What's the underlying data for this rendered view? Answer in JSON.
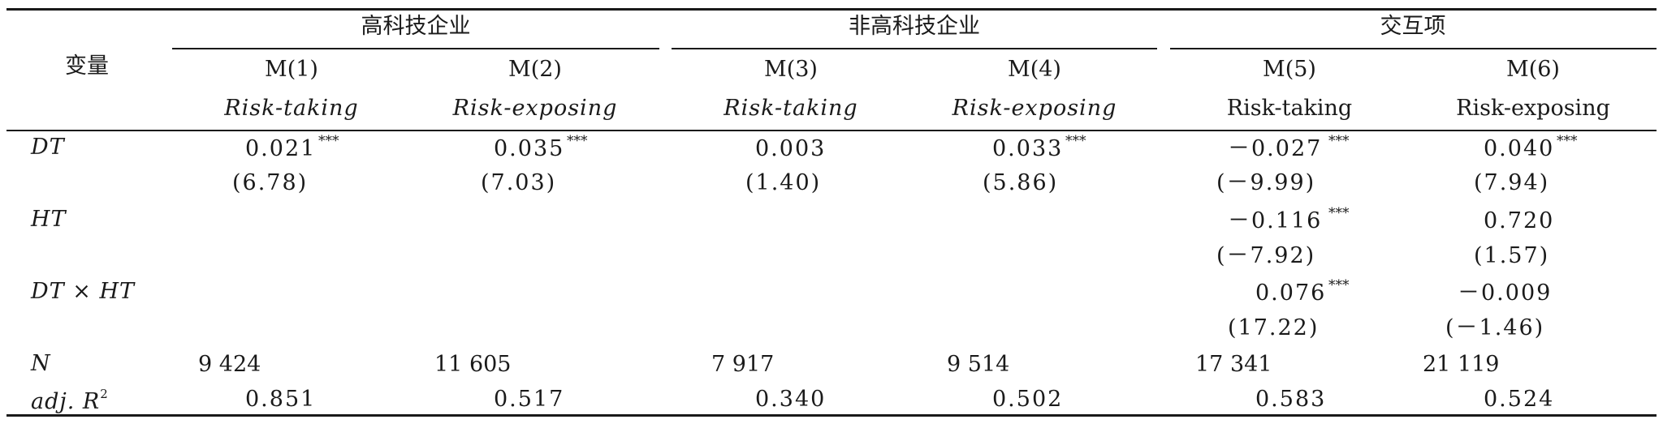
{
  "table": {
    "stub_header": "变量",
    "groups": [
      "高科技企业",
      "非高科技企业",
      "交互项"
    ],
    "models": [
      "M(1)",
      "M(2)",
      "M(3)",
      "M(4)",
      "M(5)",
      "M(6)"
    ],
    "dependent_vars": [
      "Risk-taking",
      "Risk-exposing",
      "Risk-taking",
      "Risk-exposing",
      "Risk-taking",
      "Risk-exposing"
    ],
    "rows": {
      "dt": {
        "label": "DT",
        "coef": [
          "0.021",
          "0.035",
          "0.003",
          "0.033",
          "－0.027",
          "0.040"
        ],
        "stars": [
          "***",
          "***",
          "",
          "***",
          "***",
          "***"
        ],
        "tstat": [
          "(6.78)",
          "(7.03)",
          "(1.40)",
          "(5.86)",
          "(－9.99)",
          "(7.94)"
        ]
      },
      "ht": {
        "label": "HT",
        "coef5": "－0.116",
        "stars5": "***",
        "coef6": "0.720",
        "t5": "(－7.92)",
        "t6": "(1.57)"
      },
      "dtht": {
        "label": "DT × HT",
        "coef5": "0.076",
        "stars5": "***",
        "coef6": "－0.009",
        "t5": "(17.22)",
        "t6": "(－1.46)"
      },
      "n": {
        "label": "N",
        "values": [
          "9 424",
          "11 605",
          "7 917",
          "9 514",
          "17 341",
          "21 119"
        ]
      },
      "adj_r2": {
        "label": "adj. R",
        "label_sup": "2",
        "values": [
          "0.851",
          "0.517",
          "0.340",
          "0.502",
          "0.583",
          "0.524"
        ]
      }
    }
  }
}
